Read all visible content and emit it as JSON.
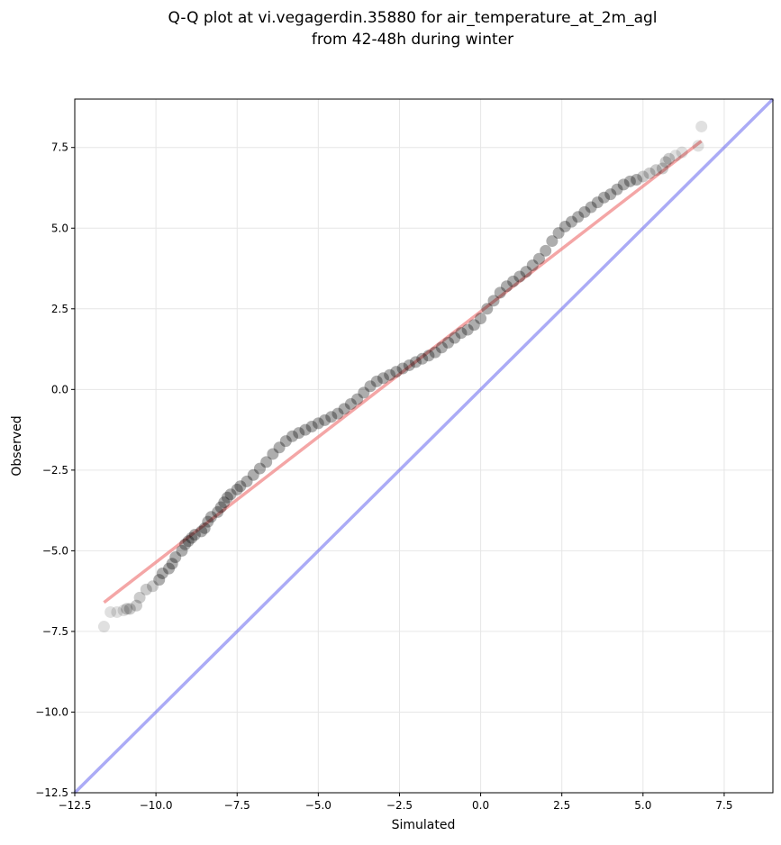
{
  "chart_data": {
    "type": "scatter",
    "title": [
      "Q-Q plot at vi.vegagerdin.35880 for air_temperature_at_2m_agl",
      "from 42-48h during winter"
    ],
    "xlabel": "Simulated",
    "ylabel": "Observed",
    "xlim": [
      -12.5,
      9.0
    ],
    "ylim": [
      -12.5,
      9.0
    ],
    "x_ticks": [
      -12.5,
      -10.0,
      -7.5,
      -5.0,
      -2.5,
      0.0,
      2.5,
      5.0,
      7.5
    ],
    "x_tick_labels": [
      "−12.5",
      "−10.0",
      "−7.5",
      "−5.0",
      "−2.5",
      "0.0",
      "2.5",
      "5.0",
      "7.5"
    ],
    "y_ticks": [
      -12.5,
      -10.0,
      -7.5,
      -5.0,
      -2.5,
      0.0,
      2.5,
      5.0,
      7.5
    ],
    "y_tick_labels": [
      "−12.5",
      "−10.0",
      "−7.5",
      "−5.0",
      "−2.5",
      "0.0",
      "2.5",
      "5.0",
      "7.5"
    ],
    "grid": true,
    "colors": {
      "points": "#000000",
      "fit_line": "#f08080",
      "identity_line": "#6666ee",
      "grid": "#e6e6e6"
    },
    "qq_points": {
      "x": [
        -11.6,
        -11.4,
        -11.2,
        -11.0,
        -10.9,
        -10.8,
        -10.6,
        -10.5,
        -10.3,
        -10.1,
        -9.9,
        -9.8,
        -9.6,
        -9.5,
        -9.4,
        -9.2,
        -9.1,
        -9.0,
        -8.9,
        -8.8,
        -8.6,
        -8.5,
        -8.4,
        -8.3,
        -8.1,
        -8.0,
        -7.9,
        -7.8,
        -7.7,
        -7.5,
        -7.4,
        -7.2,
        -7.0,
        -6.8,
        -6.6,
        -6.4,
        -6.2,
        -6.0,
        -5.8,
        -5.6,
        -5.4,
        -5.2,
        -5.0,
        -4.8,
        -4.6,
        -4.4,
        -4.2,
        -4.0,
        -3.8,
        -3.6,
        -3.4,
        -3.2,
        -3.0,
        -2.8,
        -2.6,
        -2.4,
        -2.2,
        -2.0,
        -1.8,
        -1.6,
        -1.4,
        -1.2,
        -1.0,
        -0.8,
        -0.6,
        -0.4,
        -0.2,
        0.0,
        0.2,
        0.4,
        0.6,
        0.8,
        1.0,
        1.2,
        1.4,
        1.6,
        1.8,
        2.0,
        2.2,
        2.4,
        2.6,
        2.8,
        3.0,
        3.2,
        3.4,
        3.6,
        3.8,
        4.0,
        4.2,
        4.4,
        4.6,
        4.8,
        5.0,
        5.2,
        5.4,
        5.6,
        5.7,
        5.8,
        6.0,
        6.2,
        6.7,
        6.8
      ],
      "y": [
        -7.35,
        -6.9,
        -6.9,
        -6.85,
        -6.8,
        -6.8,
        -6.7,
        -6.45,
        -6.2,
        -6.1,
        -5.9,
        -5.7,
        -5.55,
        -5.4,
        -5.2,
        -5.0,
        -4.8,
        -4.7,
        -4.6,
        -4.5,
        -4.4,
        -4.3,
        -4.1,
        -3.95,
        -3.8,
        -3.65,
        -3.5,
        -3.35,
        -3.25,
        -3.1,
        -3.0,
        -2.85,
        -2.65,
        -2.45,
        -2.25,
        -2.0,
        -1.8,
        -1.6,
        -1.45,
        -1.35,
        -1.25,
        -1.15,
        -1.05,
        -0.95,
        -0.85,
        -0.75,
        -0.6,
        -0.45,
        -0.3,
        -0.1,
        0.1,
        0.25,
        0.35,
        0.45,
        0.55,
        0.65,
        0.75,
        0.85,
        0.95,
        1.05,
        1.15,
        1.3,
        1.45,
        1.6,
        1.75,
        1.85,
        2.0,
        2.2,
        2.5,
        2.75,
        3.0,
        3.2,
        3.35,
        3.5,
        3.65,
        3.85,
        4.05,
        4.3,
        4.6,
        4.85,
        5.05,
        5.2,
        5.35,
        5.5,
        5.65,
        5.8,
        5.95,
        6.05,
        6.2,
        6.35,
        6.45,
        6.5,
        6.6,
        6.7,
        6.8,
        6.85,
        7.05,
        7.15,
        7.25,
        7.35,
        7.55,
        8.15
      ]
    },
    "fit_line": {
      "x": [
        -11.6,
        6.8
      ],
      "y": [
        -6.6,
        7.7
      ]
    },
    "identity_line": {
      "x": [
        -12.5,
        9.0
      ],
      "y": [
        -12.5,
        9.0
      ]
    }
  }
}
